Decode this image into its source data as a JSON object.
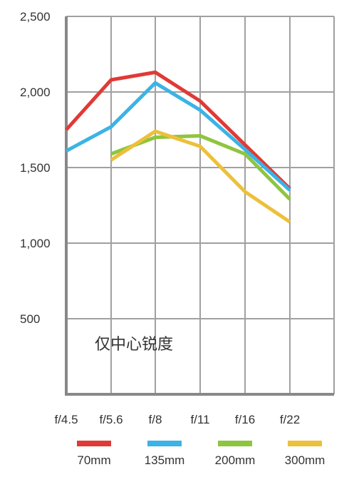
{
  "chart_data": {
    "type": "line",
    "categories": [
      "f/4.5",
      "f/5.6",
      "f/8",
      "f/11",
      "f/16",
      "f/22"
    ],
    "y_ticks": [
      "2,500",
      "2,000",
      "1,500",
      "1,000",
      "500"
    ],
    "ylim": [
      0,
      2500
    ],
    "grid": true,
    "legend_position": "bottom",
    "annotation": "仅中心锐度",
    "series": [
      {
        "name": "70mm",
        "color": "#e03a36",
        "values": [
          1750,
          2080,
          2130,
          1940,
          1650,
          1360
        ]
      },
      {
        "name": "135mm",
        "color": "#3bb3e6",
        "values": [
          1610,
          1770,
          2060,
          1880,
          1620,
          1350
        ]
      },
      {
        "name": "200mm",
        "color": "#8ec53f",
        "values": [
          null,
          1590,
          1700,
          1710,
          1590,
          1290
        ]
      },
      {
        "name": "300mm",
        "color": "#edc03a",
        "values": [
          null,
          1550,
          1740,
          1640,
          1340,
          1140
        ]
      }
    ]
  }
}
